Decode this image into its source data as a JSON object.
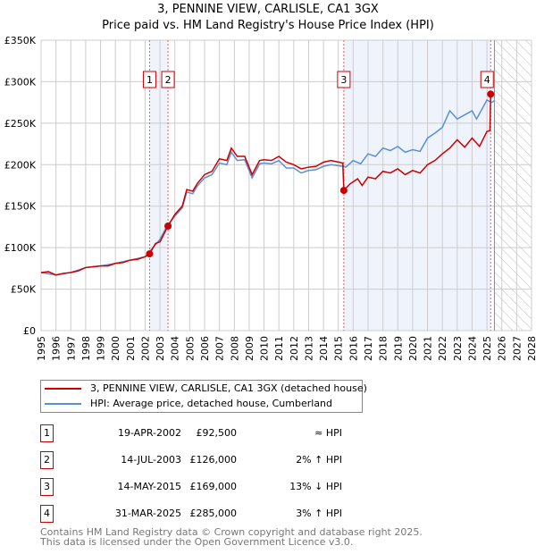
{
  "chart_data": {
    "type": "line",
    "title": "3, PENNINE VIEW, CARLISLE, CA1 3GX",
    "subtitle": "Price paid vs. HM Land Registry's House Price Index (HPI)",
    "xlim": [
      1995,
      2028
    ],
    "ylim": [
      0,
      350000
    ],
    "x_ticks": [
      "1995",
      "1996",
      "1997",
      "1998",
      "1999",
      "2000",
      "2001",
      "2002",
      "2003",
      "2004",
      "2005",
      "2006",
      "2007",
      "2008",
      "2009",
      "2010",
      "2011",
      "2012",
      "2013",
      "2014",
      "2015",
      "2016",
      "2017",
      "2018",
      "2019",
      "2020",
      "2021",
      "2022",
      "2023",
      "2024",
      "2025",
      "2026",
      "2027",
      "2028"
    ],
    "y_ticks": [
      {
        "v": 0,
        "label": "£0"
      },
      {
        "v": 50000,
        "label": "£50K"
      },
      {
        "v": 100000,
        "label": "£100K"
      },
      {
        "v": 150000,
        "label": "£150K"
      },
      {
        "v": 200000,
        "label": "£200K"
      },
      {
        "v": 250000,
        "label": "£250K"
      },
      {
        "v": 300000,
        "label": "£300K"
      },
      {
        "v": 350000,
        "label": "£350K"
      }
    ],
    "grid": true,
    "shaded_ranges": [
      [
        2002.3,
        2003.54
      ],
      [
        2015.37,
        2025.25
      ]
    ],
    "forecast_hatch_from": 2025.5,
    "series": [
      {
        "name": "3, PENNINE VIEW, CARLISLE, CA1 3GX (detached house)",
        "color": "#cc0000",
        "points": [
          [
            1995,
            70
          ],
          [
            1995.5,
            71
          ],
          [
            1996,
            67
          ],
          [
            1996.5,
            69
          ],
          [
            1997,
            70
          ],
          [
            1997.5,
            72
          ],
          [
            1998,
            76
          ],
          [
            1998.5,
            77
          ],
          [
            1999,
            78
          ],
          [
            1999.5,
            78
          ],
          [
            2000,
            81
          ],
          [
            2000.5,
            82
          ],
          [
            2001,
            85
          ],
          [
            2001.5,
            86
          ],
          [
            2002,
            89
          ],
          [
            2002.3,
            92.5
          ],
          [
            2002.7,
            105
          ],
          [
            2003,
            107
          ],
          [
            2003.54,
            126
          ],
          [
            2004,
            140
          ],
          [
            2004.5,
            150
          ],
          [
            2004.8,
            170
          ],
          [
            2005.2,
            168
          ],
          [
            2005.5,
            177
          ],
          [
            2006,
            188
          ],
          [
            2006.5,
            192
          ],
          [
            2007,
            207
          ],
          [
            2007.5,
            205
          ],
          [
            2007.8,
            220
          ],
          [
            2008.2,
            210
          ],
          [
            2008.7,
            210
          ],
          [
            2009.2,
            188
          ],
          [
            2009.7,
            205
          ],
          [
            2010,
            206
          ],
          [
            2010.5,
            205
          ],
          [
            2011,
            210
          ],
          [
            2011.5,
            203
          ],
          [
            2012,
            200
          ],
          [
            2012.5,
            195
          ],
          [
            2013,
            197
          ],
          [
            2013.5,
            198
          ],
          [
            2014,
            203
          ],
          [
            2014.5,
            205
          ],
          [
            2015.3,
            202
          ],
          [
            2015.37,
            169
          ],
          [
            2015.8,
            177
          ],
          [
            2016.3,
            183
          ],
          [
            2016.6,
            175
          ],
          [
            2017,
            185
          ],
          [
            2017.5,
            183
          ],
          [
            2018,
            192
          ],
          [
            2018.5,
            190
          ],
          [
            2019,
            195
          ],
          [
            2019.5,
            188
          ],
          [
            2020,
            193
          ],
          [
            2020.5,
            190
          ],
          [
            2021,
            200
          ],
          [
            2021.5,
            205
          ],
          [
            2022,
            213
          ],
          [
            2022.5,
            220
          ],
          [
            2023,
            230
          ],
          [
            2023.5,
            221
          ],
          [
            2024,
            232
          ],
          [
            2024.5,
            222
          ],
          [
            2025,
            240
          ],
          [
            2025.2,
            241
          ],
          [
            2025.25,
            285
          ]
        ]
      },
      {
        "name": "HPI: Average price, detached house, Cumberland",
        "color": "#5b8fd4",
        "points": [
          [
            1995,
            70
          ],
          [
            1996,
            67
          ],
          [
            1997,
            70
          ],
          [
            1998,
            76
          ],
          [
            1999,
            78
          ],
          [
            2000,
            81
          ],
          [
            2001,
            85
          ],
          [
            2002,
            89
          ],
          [
            2003,
            110
          ],
          [
            2003.5,
            127
          ],
          [
            2004,
            138
          ],
          [
            2004.5,
            148
          ],
          [
            2004.8,
            167
          ],
          [
            2005.2,
            165
          ],
          [
            2005.5,
            174
          ],
          [
            2006,
            184
          ],
          [
            2006.5,
            188
          ],
          [
            2007,
            202
          ],
          [
            2007.5,
            200
          ],
          [
            2007.8,
            215
          ],
          [
            2008.2,
            205
          ],
          [
            2008.7,
            206
          ],
          [
            2009.2,
            184
          ],
          [
            2009.7,
            201
          ],
          [
            2010,
            202
          ],
          [
            2010.5,
            201
          ],
          [
            2011,
            205
          ],
          [
            2011.5,
            196
          ],
          [
            2012,
            196
          ],
          [
            2012.5,
            190
          ],
          [
            2013,
            193
          ],
          [
            2013.5,
            194
          ],
          [
            2014,
            198
          ],
          [
            2014.5,
            200
          ],
          [
            2015.3,
            198
          ],
          [
            2015.5,
            197
          ],
          [
            2016,
            205
          ],
          [
            2016.5,
            201
          ],
          [
            2017,
            213
          ],
          [
            2017.5,
            210
          ],
          [
            2018,
            220
          ],
          [
            2018.5,
            217
          ],
          [
            2019,
            222
          ],
          [
            2019.5,
            215
          ],
          [
            2020,
            218
          ],
          [
            2020.5,
            216
          ],
          [
            2021,
            232
          ],
          [
            2021.5,
            238
          ],
          [
            2022,
            245
          ],
          [
            2022.5,
            265
          ],
          [
            2023,
            255
          ],
          [
            2023.5,
            260
          ],
          [
            2024,
            265
          ],
          [
            2024.3,
            255
          ],
          [
            2025,
            278
          ],
          [
            2025.3,
            275
          ],
          [
            2025.5,
            277
          ]
        ]
      }
    ],
    "sales": [
      {
        "n": "1",
        "x": 2002.3,
        "y": 92500
      },
      {
        "n": "2",
        "x": 2003.54,
        "y": 126000
      },
      {
        "n": "3",
        "x": 2015.37,
        "y": 169000
      },
      {
        "n": "4",
        "x": 2025.25,
        "y": 285000
      }
    ]
  },
  "legend": [
    "3, PENNINE VIEW, CARLISLE, CA1 3GX (detached house)",
    "HPI: Average price, detached house, Cumberland"
  ],
  "transactions": [
    {
      "n": "1",
      "date": "19-APR-2002",
      "price": "£92,500",
      "hpi": "≈ HPI"
    },
    {
      "n": "2",
      "date": "14-JUL-2003",
      "price": "£126,000",
      "hpi": "2% ↑ HPI"
    },
    {
      "n": "3",
      "date": "14-MAY-2015",
      "price": "£169,000",
      "hpi": "13% ↓ HPI"
    },
    {
      "n": "4",
      "date": "31-MAR-2025",
      "price": "£285,000",
      "hpi": "3% ↑ HPI"
    }
  ],
  "footer": [
    "Contains HM Land Registry data © Crown copyright and database right 2025.",
    "This data is licensed under the Open Government Licence v3.0."
  ]
}
